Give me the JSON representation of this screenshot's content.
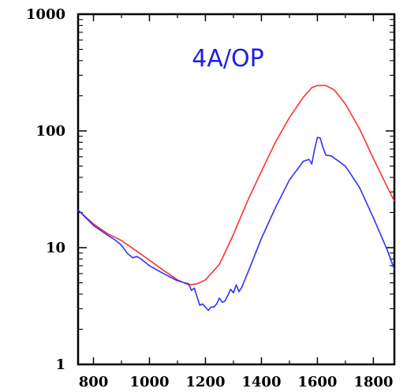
{
  "chart_data": {
    "type": "line",
    "title": "4A/OP",
    "title_color": "#1e1ee6",
    "xlabel": "",
    "ylabel": "",
    "xlim": [
      745,
      1875
    ],
    "ylim": [
      1,
      1000
    ],
    "y_scale": "log",
    "grid": false,
    "x_ticks": [
      800,
      1000,
      1200,
      1400,
      1600,
      1800
    ],
    "x_tick_labels": [
      "800",
      "1000",
      "1200",
      "1400",
      "1600",
      "1800"
    ],
    "y_ticks": [
      1,
      10,
      100,
      1000
    ],
    "y_tick_labels": [
      "1",
      "10",
      "100",
      "1000"
    ],
    "series": [
      {
        "color": "#ff3030",
        "points": [
          [
            745,
            21
          ],
          [
            800,
            16
          ],
          [
            850,
            13.2
          ],
          [
            900,
            11.5
          ],
          [
            950,
            9.5
          ],
          [
            1000,
            7.8
          ],
          [
            1050,
            6.4
          ],
          [
            1100,
            5.3
          ],
          [
            1140,
            4.8
          ],
          [
            1170,
            4.9
          ],
          [
            1200,
            5.3
          ],
          [
            1250,
            7.2
          ],
          [
            1300,
            13
          ],
          [
            1350,
            25
          ],
          [
            1400,
            45
          ],
          [
            1450,
            80
          ],
          [
            1500,
            130
          ],
          [
            1550,
            195
          ],
          [
            1580,
            235
          ],
          [
            1600,
            245
          ],
          [
            1630,
            245
          ],
          [
            1660,
            225
          ],
          [
            1700,
            170
          ],
          [
            1750,
            105
          ],
          [
            1800,
            58
          ],
          [
            1850,
            33
          ],
          [
            1875,
            25
          ]
        ]
      },
      {
        "color": "#3030ff",
        "points": [
          [
            745,
            21
          ],
          [
            800,
            15.5
          ],
          [
            850,
            12.8
          ],
          [
            880,
            11.5
          ],
          [
            900,
            10.5
          ],
          [
            920,
            9
          ],
          [
            940,
            8.2
          ],
          [
            955,
            8.4
          ],
          [
            970,
            8
          ],
          [
            1000,
            7
          ],
          [
            1050,
            6
          ],
          [
            1100,
            5.2
          ],
          [
            1140,
            4.9
          ],
          [
            1150,
            4.3
          ],
          [
            1160,
            4.5
          ],
          [
            1170,
            3.8
          ],
          [
            1180,
            3.2
          ],
          [
            1190,
            3.3
          ],
          [
            1200,
            3.1
          ],
          [
            1210,
            2.9
          ],
          [
            1220,
            3.1
          ],
          [
            1230,
            3.1
          ],
          [
            1240,
            3.3
          ],
          [
            1250,
            3.7
          ],
          [
            1260,
            3.4
          ],
          [
            1270,
            3.5
          ],
          [
            1280,
            3.9
          ],
          [
            1290,
            4.4
          ],
          [
            1300,
            4.1
          ],
          [
            1310,
            4.8
          ],
          [
            1320,
            4.2
          ],
          [
            1330,
            4.6
          ],
          [
            1350,
            6
          ],
          [
            1400,
            12
          ],
          [
            1450,
            22
          ],
          [
            1500,
            38
          ],
          [
            1550,
            55
          ],
          [
            1570,
            57
          ],
          [
            1580,
            52
          ],
          [
            1590,
            70
          ],
          [
            1600,
            88
          ],
          [
            1610,
            87
          ],
          [
            1620,
            72
          ],
          [
            1630,
            62
          ],
          [
            1650,
            61
          ],
          [
            1700,
            50
          ],
          [
            1750,
            33
          ],
          [
            1800,
            18
          ],
          [
            1850,
            9.5
          ],
          [
            1875,
            6.5
          ]
        ]
      }
    ]
  }
}
